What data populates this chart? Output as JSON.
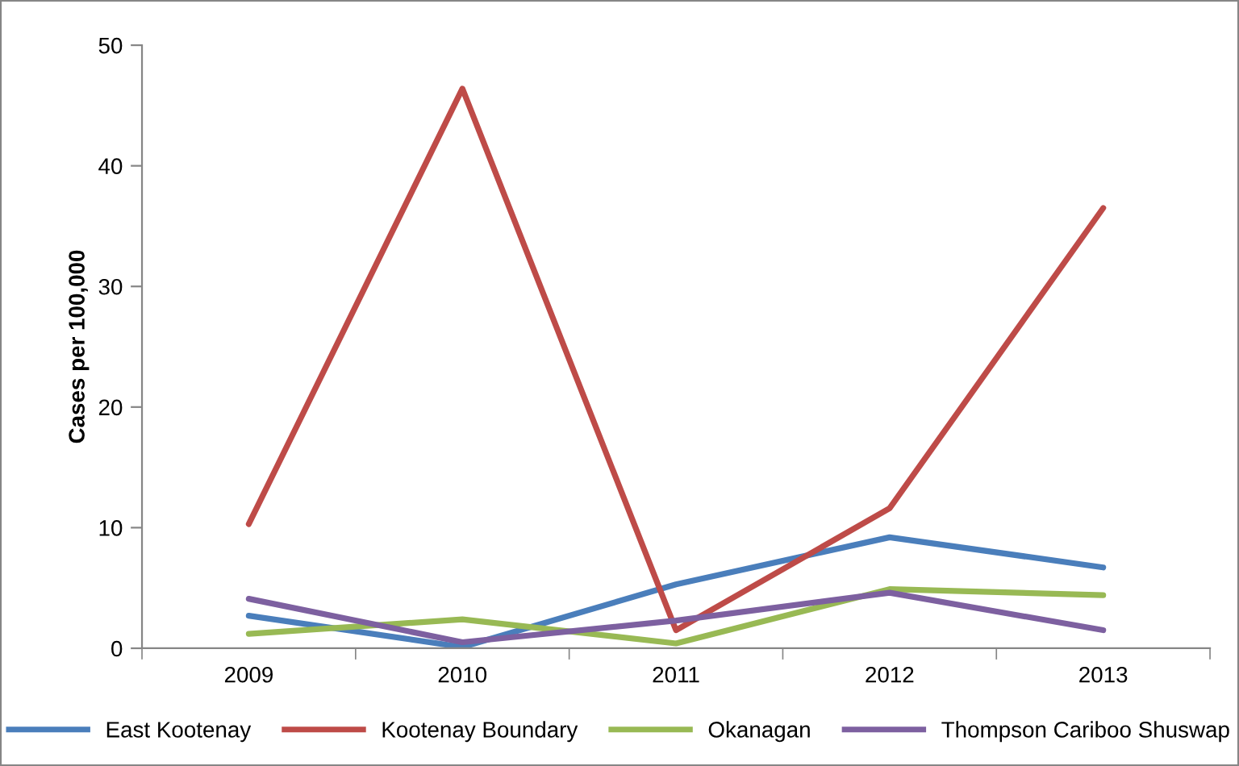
{
  "chart_data": {
    "type": "line",
    "ylabel": "Cases per 100,000",
    "categories": [
      "2009",
      "2010",
      "2011",
      "2012",
      "2013"
    ],
    "series": [
      {
        "name": "East Kootenay",
        "color": "#4a7ebb",
        "values": [
          2.7,
          0.1,
          5.3,
          9.2,
          6.7
        ]
      },
      {
        "name": "Kootenay Boundary",
        "color": "#be4b48",
        "values": [
          10.3,
          46.4,
          1.5,
          11.6,
          36.5
        ]
      },
      {
        "name": "Okanagan",
        "color": "#98b954",
        "values": [
          1.2,
          2.4,
          0.4,
          4.9,
          4.4
        ]
      },
      {
        "name": "Thompson Cariboo Shuswap",
        "color": "#7d60a0",
        "values": [
          4.1,
          0.5,
          2.3,
          4.6,
          1.5
        ]
      }
    ],
    "ylim": [
      0,
      50
    ],
    "yticks": [
      0,
      10,
      20,
      30,
      40,
      50
    ],
    "grid": false,
    "legend": "bottom",
    "marker": "none",
    "line_style": "solid"
  }
}
